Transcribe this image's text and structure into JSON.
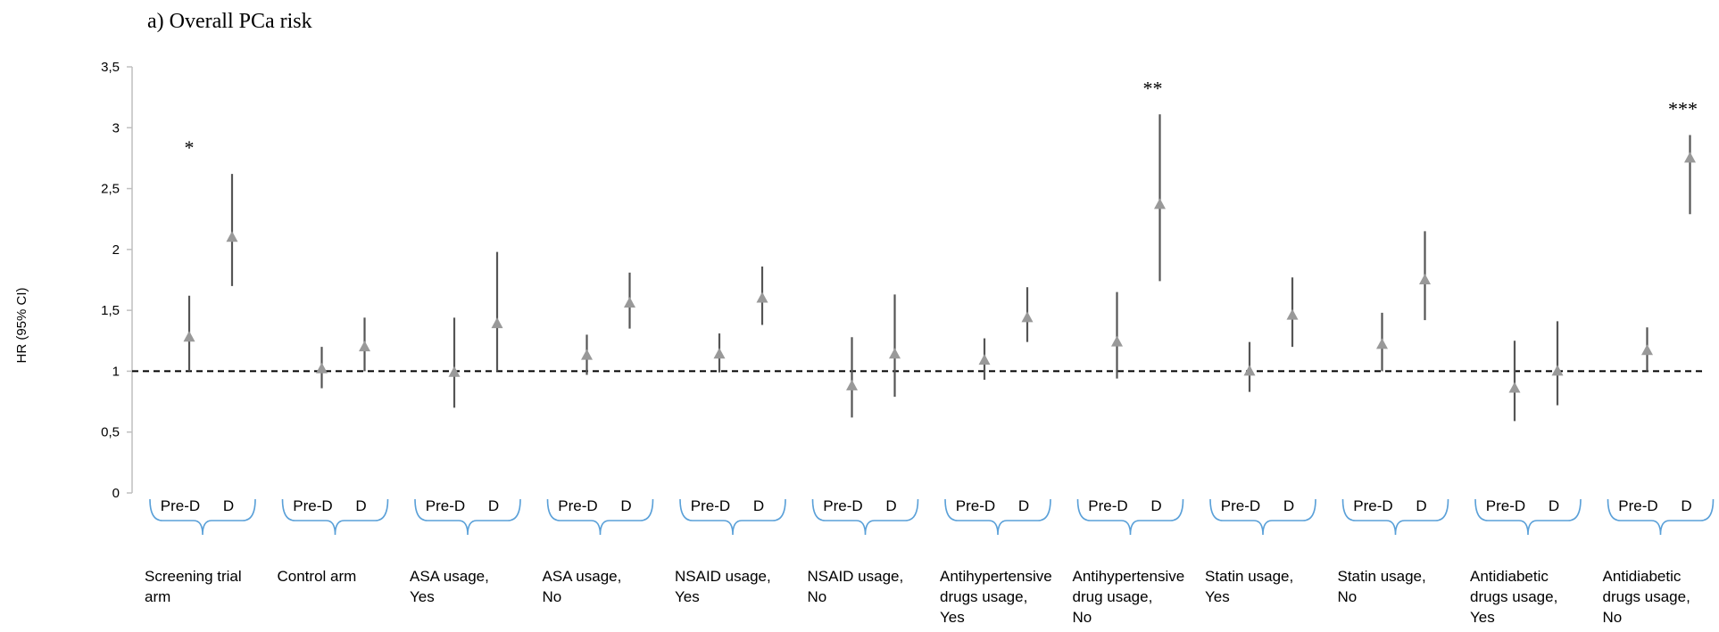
{
  "chart_data": {
    "type": "scatter",
    "title": "a)   Overall PCa risk",
    "ylabel": "HR (95% CI)",
    "ylim": [
      0,
      3.5
    ],
    "yticks": [
      0,
      0.5,
      1,
      1.5,
      2,
      2.5,
      3,
      3.5
    ],
    "ytick_labels": [
      "0",
      "0,5",
      "1",
      "1,5",
      "2",
      "2,5",
      "3",
      "3,5"
    ],
    "reference_line": 1,
    "phase_labels": [
      "Pre-D",
      "D"
    ],
    "groups": [
      {
        "label": [
          "Screening trial",
          "arm"
        ],
        "significance": "*",
        "points": [
          {
            "phase": "Pre-D",
            "hr": 1.28,
            "lo": 1.0,
            "hi": 1.62
          },
          {
            "phase": "D",
            "hr": 2.1,
            "lo": 1.7,
            "hi": 2.62
          }
        ]
      },
      {
        "label": [
          "Control arm"
        ],
        "significance": "",
        "points": [
          {
            "phase": "Pre-D",
            "hr": 1.02,
            "lo": 0.86,
            "hi": 1.2
          },
          {
            "phase": "D",
            "hr": 1.2,
            "lo": 1.0,
            "hi": 1.44
          }
        ]
      },
      {
        "label": [
          "ASA usage,",
          "Yes"
        ],
        "significance": "",
        "points": [
          {
            "phase": "Pre-D",
            "hr": 0.99,
            "lo": 0.7,
            "hi": 1.44
          },
          {
            "phase": "D",
            "hr": 1.39,
            "lo": 1.0,
            "hi": 1.98
          }
        ]
      },
      {
        "label": [
          "ASA usage,",
          "No"
        ],
        "significance": "",
        "points": [
          {
            "phase": "Pre-D",
            "hr": 1.13,
            "lo": 0.97,
            "hi": 1.3
          },
          {
            "phase": "D",
            "hr": 1.56,
            "lo": 1.35,
            "hi": 1.81
          }
        ]
      },
      {
        "label": [
          "NSAID usage,",
          "Yes"
        ],
        "significance": "",
        "points": [
          {
            "phase": "Pre-D",
            "hr": 1.14,
            "lo": 0.99,
            "hi": 1.31
          },
          {
            "phase": "D",
            "hr": 1.6,
            "lo": 1.38,
            "hi": 1.86
          }
        ]
      },
      {
        "label": [
          "NSAID usage,",
          "No"
        ],
        "significance": "",
        "points": [
          {
            "phase": "Pre-D",
            "hr": 0.88,
            "lo": 0.62,
            "hi": 1.28
          },
          {
            "phase": "D",
            "hr": 1.14,
            "lo": 0.79,
            "hi": 1.63
          }
        ]
      },
      {
        "label": [
          "Antihypertensive",
          "drugs usage,",
          "Yes"
        ],
        "significance": "",
        "points": [
          {
            "phase": "Pre-D",
            "hr": 1.09,
            "lo": 0.93,
            "hi": 1.27
          },
          {
            "phase": "D",
            "hr": 1.44,
            "lo": 1.24,
            "hi": 1.69
          }
        ]
      },
      {
        "label": [
          "Antihypertensive",
          "drug usage,",
          "No"
        ],
        "significance": "**",
        "points": [
          {
            "phase": "Pre-D",
            "hr": 1.24,
            "lo": 0.94,
            "hi": 1.65
          },
          {
            "phase": "D",
            "hr": 2.37,
            "lo": 1.74,
            "hi": 3.11
          }
        ]
      },
      {
        "label": [
          "Statin usage,",
          "Yes"
        ],
        "significance": "",
        "points": [
          {
            "phase": "Pre-D",
            "hr": 1.0,
            "lo": 0.83,
            "hi": 1.24
          },
          {
            "phase": "D",
            "hr": 1.46,
            "lo": 1.2,
            "hi": 1.77
          }
        ]
      },
      {
        "label": [
          "Statin usage,",
          "No"
        ],
        "significance": "",
        "points": [
          {
            "phase": "Pre-D",
            "hr": 1.22,
            "lo": 1.0,
            "hi": 1.48
          },
          {
            "phase": "D",
            "hr": 1.75,
            "lo": 1.42,
            "hi": 2.15
          }
        ]
      },
      {
        "label": [
          "Antidiabetic",
          "drugs usage,",
          "Yes"
        ],
        "significance": "",
        "points": [
          {
            "phase": "Pre-D",
            "hr": 0.86,
            "lo": 0.59,
            "hi": 1.25
          },
          {
            "phase": "D",
            "hr": 1.0,
            "lo": 0.72,
            "hi": 1.41
          }
        ]
      },
      {
        "label": [
          "Antidiabetic",
          "drugs usage,",
          "No"
        ],
        "significance": "***",
        "points": [
          {
            "phase": "Pre-D",
            "hr": 1.17,
            "lo": 1.0,
            "hi": 1.36
          },
          {
            "phase": "D",
            "hr": 2.75,
            "lo": 2.29,
            "hi": 2.94
          }
        ]
      }
    ],
    "colors": {
      "marker": "#999999",
      "ci_line": "#555555",
      "bracket": "#5aa0d8",
      "axis": "#bfbfbf",
      "reference": "#000000"
    }
  }
}
